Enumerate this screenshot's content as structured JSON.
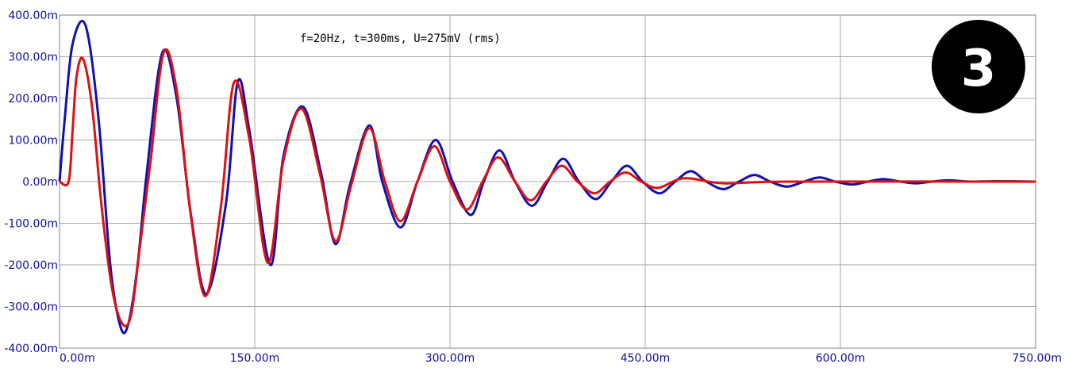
{
  "chart_data": {
    "type": "line",
    "title": "",
    "xlabel": "",
    "ylabel": "",
    "annotation": "f=20Hz, t=300ms, U=275mV (rms)",
    "badge": "3",
    "xlim": [
      0,
      750
    ],
    "ylim": [
      -400,
      400
    ],
    "x_unit": "ms",
    "y_unit": "mV",
    "grid": true,
    "legend": "none",
    "x_ticks": [
      {
        "value": 0,
        "label": "0.00m"
      },
      {
        "value": 150,
        "label": "150.00m"
      },
      {
        "value": 300,
        "label": "300.00m"
      },
      {
        "value": 450,
        "label": "450.00m"
      },
      {
        "value": 600,
        "label": "600.00m"
      },
      {
        "value": 750,
        "label": "750.00m"
      }
    ],
    "y_ticks": [
      {
        "value": 400,
        "label": "400.00m"
      },
      {
        "value": 300,
        "label": "300.00m"
      },
      {
        "value": 200,
        "label": "200.00m"
      },
      {
        "value": 100,
        "label": "100.00m"
      },
      {
        "value": 0,
        "label": "0.00m"
      },
      {
        "value": -100,
        "label": "-100.00m"
      },
      {
        "value": -200,
        "label": "-200.00m"
      },
      {
        "value": -300,
        "label": "-300.00m"
      },
      {
        "value": -400,
        "label": "-400.00m"
      }
    ],
    "series": [
      {
        "color": "#1010b0",
        "x": [
          0,
          4,
          10,
          20,
          30,
          39,
          47,
          53,
          60,
          67,
          79,
          90,
          101,
          113,
          128,
          137,
          146,
          162,
          172,
          187,
          201,
          212,
          223,
          238,
          248,
          262,
          275,
          289,
          302,
          316,
          326,
          338,
          350,
          363,
          375,
          387,
          399,
          412,
          424,
          436,
          448,
          461,
          473,
          485,
          497,
          510,
          522,
          534,
          546,
          559,
          572,
          584,
          596,
          609,
          621,
          633,
          646,
          658,
          670,
          683,
          700,
          720,
          750
        ],
        "y": [
          0,
          150,
          330,
          375,
          150,
          -200,
          -350,
          -340,
          -200,
          20,
          310,
          200,
          -80,
          -270,
          -50,
          240,
          120,
          -200,
          60,
          180,
          20,
          -150,
          -10,
          135,
          0,
          -110,
          0,
          100,
          0,
          -80,
          0,
          75,
          0,
          -58,
          0,
          55,
          0,
          -42,
          0,
          38,
          0,
          -28,
          0,
          25,
          0,
          -18,
          0,
          16,
          0,
          -12,
          0,
          10,
          0,
          -7,
          0,
          6,
          0,
          -4,
          0,
          3,
          0,
          1,
          0
        ]
      },
      {
        "color": "#dd1111",
        "x": [
          0,
          7,
          10,
          13,
          18,
          25,
          32,
          40,
          48,
          55,
          62,
          70,
          80,
          90,
          100,
          112,
          124,
          134,
          146,
          160,
          172,
          186,
          200,
          212,
          224,
          238,
          250,
          262,
          275,
          288,
          300,
          313,
          325,
          337,
          350,
          362,
          374,
          386,
          398,
          411,
          423,
          435,
          447,
          460,
          480,
          510,
          560,
          750
        ],
        "y": [
          0,
          0,
          120,
          250,
          295,
          180,
          -50,
          -250,
          -340,
          -320,
          -150,
          50,
          310,
          220,
          -60,
          -275,
          -60,
          238,
          100,
          -195,
          50,
          175,
          20,
          -143,
          -10,
          128,
          0,
          -95,
          0,
          85,
          0,
          -67,
          0,
          58,
          0,
          -45,
          0,
          38,
          0,
          -28,
          0,
          22,
          0,
          -15,
          8,
          -4,
          0,
          0
        ]
      }
    ]
  }
}
